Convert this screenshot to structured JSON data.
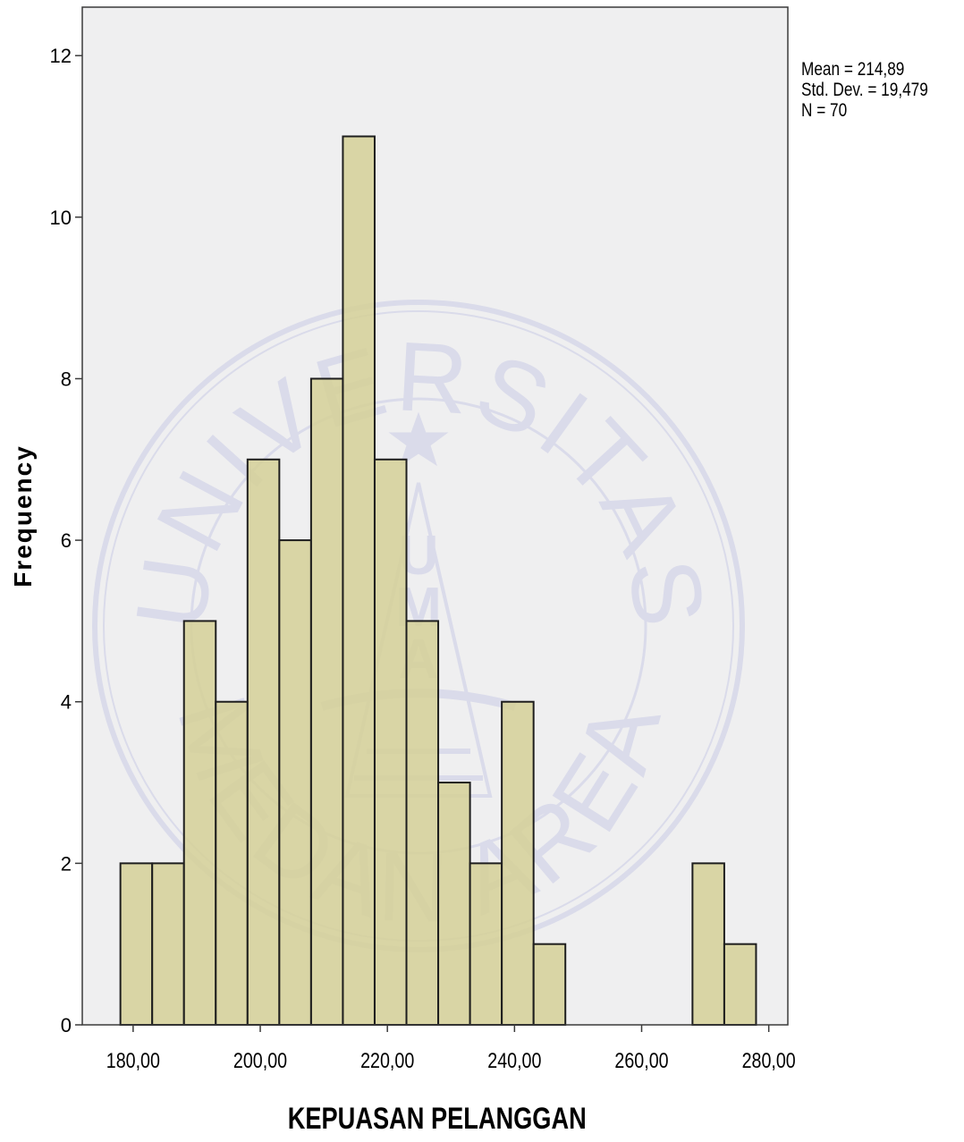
{
  "chart_data": {
    "type": "bar",
    "title": "",
    "xlabel": "KEPUASAN PELANGGAN",
    "ylabel": "Frequency",
    "bin_width": 5,
    "bins": [
      {
        "from": 178,
        "to": 183,
        "count": 2
      },
      {
        "from": 183,
        "to": 188,
        "count": 2
      },
      {
        "from": 188,
        "to": 193,
        "count": 5
      },
      {
        "from": 193,
        "to": 198,
        "count": 4
      },
      {
        "from": 198,
        "to": 203,
        "count": 7
      },
      {
        "from": 203,
        "to": 208,
        "count": 6
      },
      {
        "from": 208,
        "to": 213,
        "count": 8
      },
      {
        "from": 213,
        "to": 218,
        "count": 11
      },
      {
        "from": 218,
        "to": 223,
        "count": 7
      },
      {
        "from": 223,
        "to": 228,
        "count": 5
      },
      {
        "from": 228,
        "to": 233,
        "count": 3
      },
      {
        "from": 233,
        "to": 238,
        "count": 2
      },
      {
        "from": 238,
        "to": 243,
        "count": 4
      },
      {
        "from": 243,
        "to": 248,
        "count": 1
      },
      {
        "from": 268,
        "to": 273,
        "count": 2
      },
      {
        "from": 273,
        "to": 278,
        "count": 1
      }
    ],
    "xlim": [
      172,
      283
    ],
    "ylim": [
      0,
      12.6
    ],
    "x_ticks": [
      {
        "value": 180,
        "label": "180,00"
      },
      {
        "value": 200,
        "label": "200,00"
      },
      {
        "value": 220,
        "label": "220,00"
      },
      {
        "value": 240,
        "label": "240,00"
      },
      {
        "value": 260,
        "label": "260,00"
      },
      {
        "value": 280,
        "label": "280,00"
      }
    ],
    "y_ticks": [
      {
        "value": 0,
        "label": "0"
      },
      {
        "value": 2,
        "label": "2"
      },
      {
        "value": 4,
        "label": "4"
      },
      {
        "value": 6,
        "label": "6"
      },
      {
        "value": 8,
        "label": "8"
      },
      {
        "value": 10,
        "label": "10"
      },
      {
        "value": 12,
        "label": "12"
      }
    ],
    "stats": {
      "mean": "Mean = 214,89",
      "std": "Std. Dev. = 19,479",
      "n": "N = 70"
    },
    "grid": false,
    "colors": {
      "bar_fill": "#d4cf94",
      "bar_stroke": "#1e1e1e",
      "plot_background": "#efeff0",
      "watermark": "#c9cbe6"
    },
    "watermark": {
      "arc_top": "UNIVERSITAS",
      "arc_bottom": "MEDAN AREA",
      "letters": [
        "U",
        "M",
        "A"
      ]
    }
  }
}
